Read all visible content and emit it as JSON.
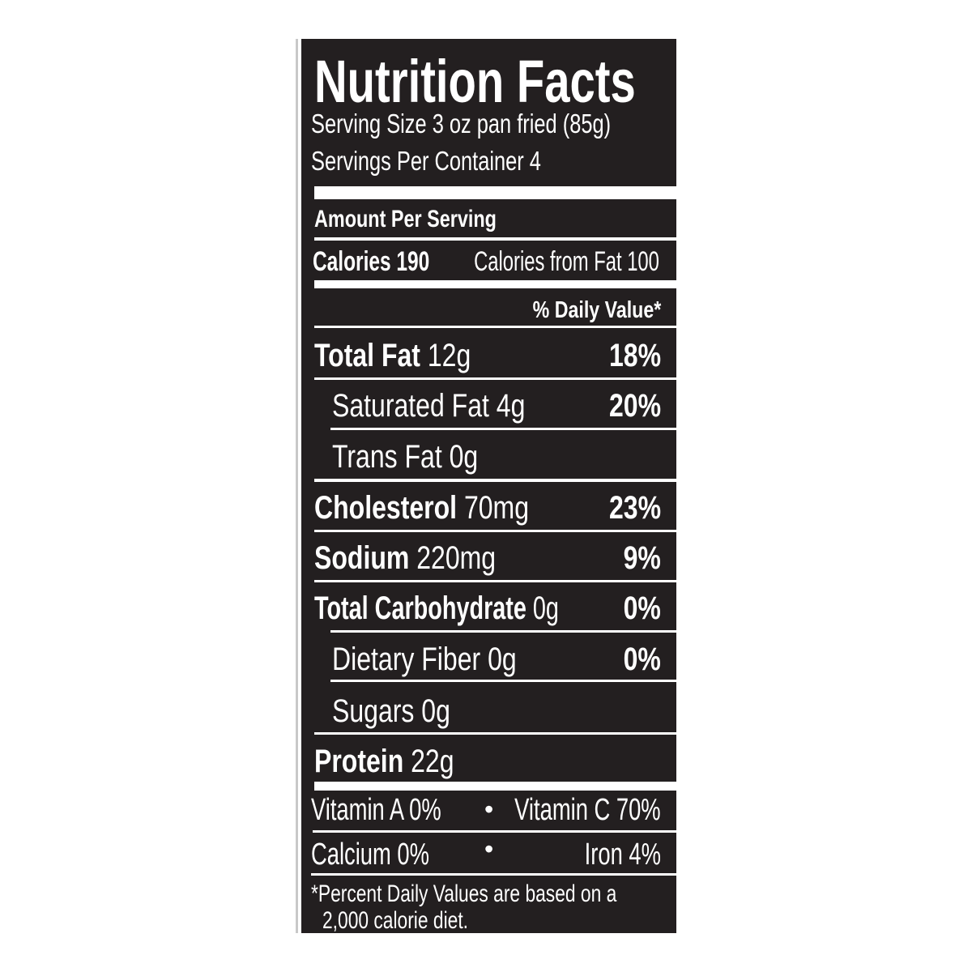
{
  "title": "Nutrition Facts",
  "serving_size": "Serving Size 3 oz pan fried (85g)",
  "servings_per_container": "Servings Per Container 4",
  "amount_per_serving": "Amount Per Serving",
  "calories": {
    "label": "Calories 190",
    "from_fat": "Calories from Fat 100"
  },
  "daily_value_header": "% Daily Value*",
  "nutrients": [
    {
      "name": "Total Fat",
      "amount": "12g",
      "dv": "18%"
    },
    {
      "name": "Saturated Fat",
      "amount": "4g",
      "dv": "20%"
    },
    {
      "name": "Trans Fat",
      "amount": "0g",
      "dv": ""
    },
    {
      "name": "Cholesterol",
      "amount": "70mg",
      "dv": "23%"
    },
    {
      "name": "Sodium",
      "amount": "220mg",
      "dv": "9%"
    },
    {
      "name": "Total Carbohydrate",
      "amount": "0g",
      "dv": "0%"
    },
    {
      "name": "Dietary Fiber",
      "amount": "0g",
      "dv": "0%"
    },
    {
      "name": "Sugars",
      "amount": "0g",
      "dv": ""
    },
    {
      "name": "Protein",
      "amount": "22g",
      "dv": ""
    }
  ],
  "vitamins": {
    "vitamin_a": "Vitamin A 0%",
    "vitamin_c": "Vitamin C 70%",
    "calcium": "Calcium 0%",
    "iron": "Iron 4%",
    "bullet": "•"
  },
  "footnote": [
    "*Percent Daily Values are based on a",
    "2,000 calorie diet."
  ],
  "colors": {
    "panel": "#231f20",
    "text": "#ffffff"
  }
}
